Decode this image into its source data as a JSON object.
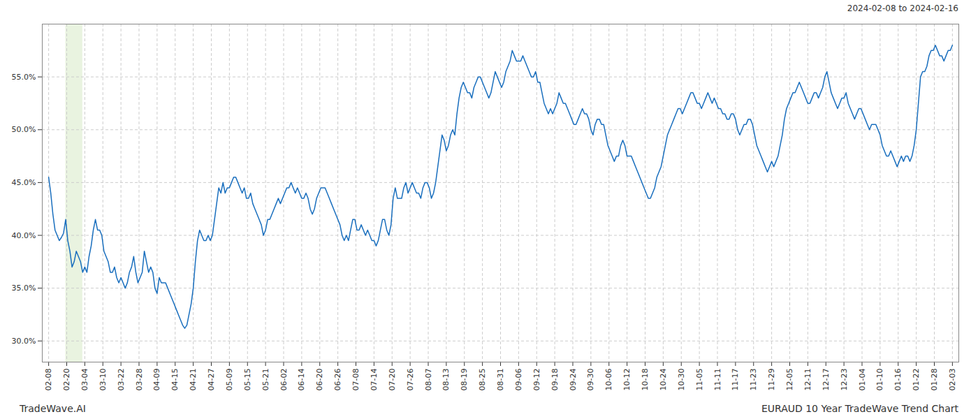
{
  "chart_data": {
    "type": "line",
    "title": "EURAUD 10 Year TradeWave Trend Chart",
    "annotations": [
      "2024-02-08 to 2024-02-16",
      "TradeWave.AI"
    ],
    "color": "#1a6fbe",
    "grid": true,
    "shaded_range": [
      8,
      16
    ],
    "shaded_color": "#d4e8c2",
    "xlim": [
      -3,
      428
    ],
    "xticks": [
      {
        "value": 0,
        "label": "02-08"
      },
      {
        "value": 8.5,
        "label": "02-20"
      },
      {
        "value": 17,
        "label": "03-04"
      },
      {
        "value": 25.5,
        "label": "03-10"
      },
      {
        "value": 34,
        "label": "03-22"
      },
      {
        "value": 42.5,
        "label": "03-28"
      },
      {
        "value": 51,
        "label": "04-09"
      },
      {
        "value": 59.5,
        "label": "04-15"
      },
      {
        "value": 68,
        "label": "04-21"
      },
      {
        "value": 76.5,
        "label": "04-27"
      },
      {
        "value": 85,
        "label": "05-09"
      },
      {
        "value": 93.5,
        "label": "05-15"
      },
      {
        "value": 102,
        "label": "05-21"
      },
      {
        "value": 110.5,
        "label": "06-02"
      },
      {
        "value": 119,
        "label": "06-14"
      },
      {
        "value": 127.5,
        "label": "06-20"
      },
      {
        "value": 136,
        "label": "06-26"
      },
      {
        "value": 144.5,
        "label": "07-08"
      },
      {
        "value": 153,
        "label": "07-14"
      },
      {
        "value": 161.5,
        "label": "07-20"
      },
      {
        "value": 170,
        "label": "07-26"
      },
      {
        "value": 178.5,
        "label": "08-07"
      },
      {
        "value": 187,
        "label": "08-13"
      },
      {
        "value": 195.5,
        "label": "08-19"
      },
      {
        "value": 204,
        "label": "08-25"
      },
      {
        "value": 212.5,
        "label": "08-31"
      },
      {
        "value": 221,
        "label": "09-06"
      },
      {
        "value": 229.5,
        "label": "09-12"
      },
      {
        "value": 238,
        "label": "09-18"
      },
      {
        "value": 246.5,
        "label": "09-24"
      },
      {
        "value": 255,
        "label": "09-30"
      },
      {
        "value": 263.5,
        "label": "10-06"
      },
      {
        "value": 272,
        "label": "10-12"
      },
      {
        "value": 280.5,
        "label": "10-18"
      },
      {
        "value": 289,
        "label": "10-24"
      },
      {
        "value": 297.5,
        "label": "10-30"
      },
      {
        "value": 306,
        "label": "11-05"
      },
      {
        "value": 314.5,
        "label": "11-11"
      },
      {
        "value": 323,
        "label": "11-17"
      },
      {
        "value": 331.5,
        "label": "11-23"
      },
      {
        "value": 340,
        "label": "11-29"
      },
      {
        "value": 348.5,
        "label": "12-05"
      },
      {
        "value": 357,
        "label": "12-11"
      },
      {
        "value": 365.5,
        "label": "12-17"
      },
      {
        "value": 374,
        "label": "12-23"
      },
      {
        "value": 382.5,
        "label": "01-04"
      },
      {
        "value": 391,
        "label": "01-10"
      },
      {
        "value": 399.5,
        "label": "01-16"
      },
      {
        "value": 408,
        "label": "01-22"
      },
      {
        "value": 416.5,
        "label": "01-28"
      },
      {
        "value": 425,
        "label": "02-03"
      }
    ],
    "ylim": [
      28.0,
      60.0
    ],
    "yticks": [
      {
        "value": 30.0,
        "label": "30.0%"
      },
      {
        "value": 35.0,
        "label": "35.0%"
      },
      {
        "value": 40.0,
        "label": "40.0%"
      },
      {
        "value": 45.0,
        "label": "45.0%"
      },
      {
        "value": 50.0,
        "label": "50.0%"
      },
      {
        "value": 55.0,
        "label": "55.0%"
      }
    ],
    "values": [
      45.5,
      44.0,
      42.0,
      40.5,
      40.0,
      39.5,
      39.8,
      40.2,
      41.5,
      39.5,
      38.5,
      37.0,
      37.5,
      38.5,
      38.0,
      37.5,
      36.5,
      37.0,
      36.5,
      38.0,
      39.0,
      40.5,
      41.5,
      40.5,
      40.5,
      40.0,
      38.5,
      38.0,
      37.5,
      36.5,
      36.5,
      37.0,
      36.0,
      35.5,
      36.0,
      35.5,
      35.0,
      35.5,
      36.5,
      37.0,
      38.0,
      36.5,
      35.5,
      36.0,
      36.5,
      38.5,
      37.5,
      36.5,
      37.0,
      36.5,
      35.0,
      34.5,
      36.0,
      35.5,
      35.5,
      35.5,
      35.0,
      34.5,
      34.0,
      33.5,
      33.0,
      32.5,
      32.0,
      31.5,
      31.2,
      31.5,
      32.5,
      33.5,
      35.0,
      37.5,
      39.5,
      40.5,
      40.0,
      39.5,
      39.5,
      40.0,
      39.5,
      40.0,
      41.5,
      43.0,
      44.5,
      44.0,
      45.0,
      44.0,
      44.5,
      44.5,
      45.0,
      45.5,
      45.5,
      45.0,
      44.5,
      44.0,
      44.5,
      43.5,
      43.5,
      44.0,
      43.0,
      42.5,
      42.0,
      41.5,
      41.0,
      40.0,
      40.5,
      41.5,
      41.5,
      42.0,
      42.5,
      43.0,
      43.5,
      43.0,
      43.5,
      44.0,
      44.5,
      44.5,
      45.0,
      44.5,
      44.0,
      44.5,
      44.0,
      43.5,
      43.5,
      44.0,
      43.5,
      42.5,
      42.0,
      42.5,
      43.5,
      44.0,
      44.5,
      44.5,
      44.5,
      44.0,
      43.5,
      43.0,
      42.5,
      42.0,
      41.5,
      41.0,
      40.0,
      39.5,
      40.0,
      39.5,
      40.5,
      41.5,
      41.5,
      40.5,
      40.5,
      41.0,
      40.5,
      40.0,
      40.5,
      40.0,
      39.5,
      39.5,
      39.0,
      39.5,
      40.5,
      41.5,
      41.5,
      40.5,
      40.0,
      41.0,
      43.5,
      44.5,
      43.5,
      43.5,
      43.5,
      44.5,
      45.0,
      44.0,
      44.5,
      45.0,
      44.5,
      44.0,
      44.0,
      43.5,
      44.5,
      45.0,
      45.0,
      44.5,
      43.5,
      44.0,
      45.0,
      46.5,
      48.0,
      49.5,
      49.0,
      48.0,
      48.5,
      49.5,
      50.0,
      49.5,
      51.5,
      53.0,
      54.0,
      54.5,
      54.0,
      53.5,
      53.5,
      53.0,
      54.0,
      54.5,
      55.0,
      55.0,
      54.5,
      54.0,
      53.5,
      53.0,
      53.5,
      54.5,
      55.5,
      55.0,
      54.5,
      54.0,
      54.5,
      55.5,
      56.0,
      56.5,
      57.5,
      57.0,
      56.5,
      56.5,
      56.5,
      57.0,
      56.5,
      56.0,
      55.5,
      55.0,
      55.0,
      55.5,
      54.5,
      54.5,
      53.5,
      52.5,
      52.0,
      51.5,
      52.0,
      51.5,
      52.0,
      52.5,
      53.5,
      53.0,
      52.5,
      52.5,
      52.0,
      51.5,
      51.0,
      50.5,
      50.5,
      51.0,
      51.5,
      52.0,
      51.5,
      51.5,
      51.0,
      50.0,
      49.5,
      50.5,
      51.0,
      51.0,
      50.5,
      50.5,
      49.5,
      48.5,
      48.0,
      47.5,
      47.0,
      47.5,
      47.5,
      48.5,
      49.0,
      48.5,
      47.5,
      47.5,
      47.5,
      47.0,
      46.5,
      46.0,
      45.5,
      45.0,
      44.5,
      44.0,
      43.5,
      43.5,
      44.0,
      44.5,
      45.5,
      46.0,
      46.5,
      47.5,
      48.5,
      49.5,
      50.0,
      50.5,
      51.0,
      51.5,
      52.0,
      52.0,
      51.5,
      52.0,
      52.5,
      53.0,
      53.5,
      53.5,
      53.0,
      52.5,
      52.5,
      52.0,
      52.5,
      53.0,
      53.5,
      53.0,
      52.5,
      53.0,
      52.5,
      52.0,
      52.0,
      51.5,
      51.5,
      51.0,
      51.0,
      51.5,
      51.5,
      51.0,
      50.0,
      49.5,
      50.0,
      50.5,
      50.5,
      51.0,
      51.0,
      50.5,
      49.5,
      48.5,
      48.0,
      47.5,
      47.0,
      46.5,
      46.0,
      46.5,
      47.0,
      46.5,
      47.0,
      47.5,
      48.5,
      49.5,
      51.0,
      52.0,
      52.5,
      53.0,
      53.5,
      53.5,
      54.0,
      54.5,
      54.0,
      53.5,
      53.0,
      52.5,
      52.5,
      53.0,
      53.5,
      53.5,
      53.0,
      53.5,
      54.0,
      55.0,
      55.5,
      54.5,
      53.5,
      53.0,
      52.5,
      52.0,
      52.5,
      53.0,
      53.0,
      53.5,
      52.5,
      52.0,
      51.5,
      51.0,
      51.5,
      52.0,
      52.0,
      51.5,
      51.0,
      50.5,
      50.0,
      50.5,
      50.5,
      50.5,
      50.0,
      49.5,
      48.5,
      48.0,
      47.5,
      47.5,
      48.0,
      47.5,
      47.0,
      46.5,
      47.0,
      47.5,
      47.0,
      47.5,
      47.5,
      47.0,
      47.5,
      48.5,
      50.0,
      52.5,
      55.0,
      55.5,
      55.5,
      56.0,
      57.0,
      57.5,
      57.5,
      58.0,
      57.5,
      57.0,
      57.0,
      56.5,
      57.0,
      57.5,
      57.5,
      58.0
    ]
  }
}
